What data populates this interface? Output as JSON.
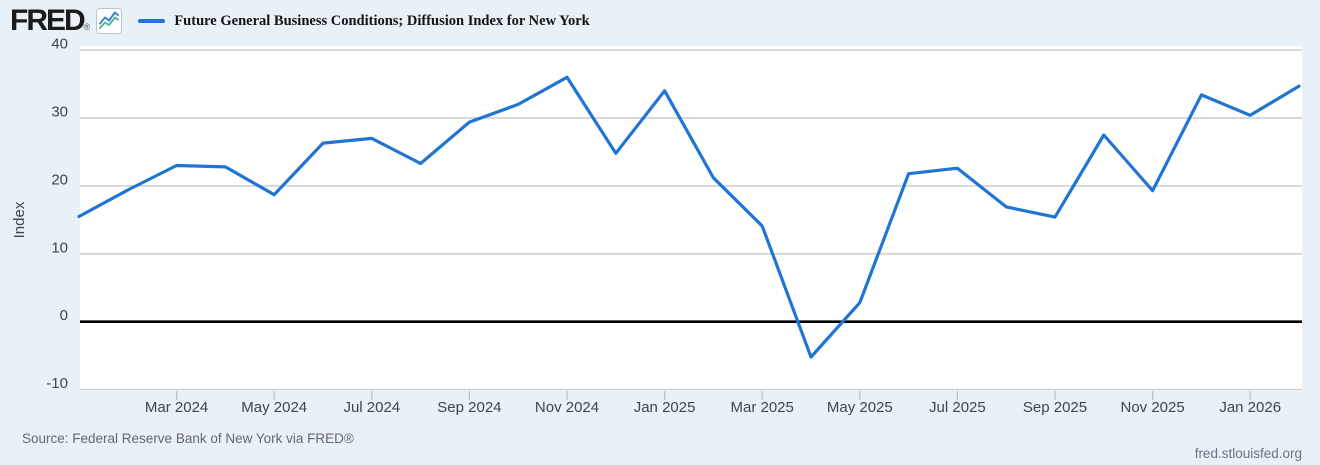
{
  "header": {
    "brand": "FRED",
    "registered_mark": "®",
    "legend_label": "Future General Business Conditions; Diffusion Index for New York"
  },
  "footer": {
    "source": "Source: Federal Reserve Bank of New York via FRED®",
    "site_link": "fred.stlouisfed.org"
  },
  "colors": {
    "background": "#e8f0f8",
    "plot_background": "#ffffff",
    "series_line": "#2074d4",
    "zero_line": "#000000",
    "gridline": "#cacaca",
    "axis_tick_mark": "#b6c4d2",
    "tick_text": "#444444",
    "icon_border": "#b9c6d2",
    "icon_line_blue": "#3b87d7",
    "icon_line_green": "#54b89c"
  },
  "chart_data": {
    "type": "line",
    "title": "Future General Business Conditions; Diffusion Index for New York",
    "xlabel": "",
    "ylabel": "Index",
    "ylim": [
      -10,
      40
    ],
    "yticks": [
      40,
      30,
      20,
      10,
      0,
      -10
    ],
    "grid": true,
    "zero_baseline": true,
    "legend_position": "top-left",
    "frequency": "monthly",
    "x": [
      "Jan 2024",
      "Feb 2024",
      "Mar 2024",
      "Apr 2024",
      "May 2024",
      "Jun 2024",
      "Jul 2024",
      "Aug 2024",
      "Sep 2024",
      "Oct 2024",
      "Nov 2024",
      "Dec 2024",
      "Jan 2025",
      "Feb 2025",
      "Mar 2025",
      "Apr 2025",
      "May 2025",
      "Jun 2025",
      "Jul 2025",
      "Aug 2025",
      "Sep 2025",
      "Oct 2025",
      "Nov 2025",
      "Dec 2025",
      "Jan 2026",
      "Feb 2026"
    ],
    "values": [
      15.5,
      19.4,
      23.0,
      22.8,
      18.7,
      26.3,
      27.0,
      23.3,
      29.4,
      32.0,
      36.0,
      24.8,
      34.0,
      21.2,
      14.1,
      -5.2,
      2.8,
      21.8,
      22.6,
      16.9,
      15.4,
      27.5,
      19.3,
      33.4,
      30.4,
      34.7
    ],
    "xtick_indices": [
      2,
      4,
      6,
      8,
      10,
      12,
      14,
      16,
      18,
      20,
      22,
      24
    ],
    "xtick_labels": [
      "Mar 2024",
      "May 2024",
      "Jul 2024",
      "Sep 2024",
      "Nov 2024",
      "Jan 2025",
      "Mar 2025",
      "May 2025",
      "Jul 2025",
      "Sep 2025",
      "Nov 2025",
      "Jan 2026"
    ]
  }
}
